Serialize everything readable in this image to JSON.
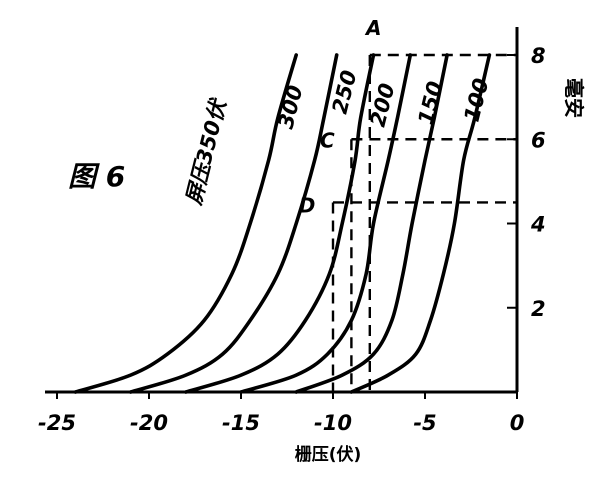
{
  "figure_label": "图 6",
  "chart_data": {
    "type": "line",
    "xlabel": "栅压(伏)",
    "ylabel": "毫安",
    "xlim": [
      -25,
      0
    ],
    "ylim": [
      0,
      8
    ],
    "x_ticks": [
      -25,
      -20,
      -15,
      -10,
      -5,
      0
    ],
    "x_tick_labels": [
      "-25",
      "-20",
      "-15",
      "-10",
      "-5",
      "0"
    ],
    "y_ticks": [
      2,
      4,
      6,
      8
    ],
    "y_tick_labels": [
      "2",
      "4",
      "6",
      "8"
    ],
    "grid": false,
    "series_label_prefix": "屏压",
    "series_label_unit": "伏",
    "series": [
      {
        "name": "350",
        "label": "屏压350伏",
        "x": [
          -24.0,
          -21.0,
          -19.0,
          -17.0,
          -15.5,
          -14.5,
          -13.5,
          -13.0,
          -12.0
        ],
        "y": [
          0,
          0.4,
          0.9,
          1.7,
          2.8,
          4.0,
          5.5,
          6.5,
          8.0
        ]
      },
      {
        "name": "300",
        "label": "300",
        "x": [
          -21.0,
          -18.0,
          -16.0,
          -14.5,
          -13.0,
          -12.0,
          -11.0,
          -10.5,
          -9.8
        ],
        "y": [
          0,
          0.4,
          0.9,
          1.7,
          2.8,
          4.0,
          5.5,
          6.5,
          8.0
        ]
      },
      {
        "name": "250",
        "label": "250",
        "x": [
          -18.0,
          -15.0,
          -13.0,
          -11.5,
          -10.2,
          -9.5,
          -8.8,
          -8.5,
          -7.8
        ],
        "y": [
          0,
          0.4,
          0.9,
          1.7,
          2.8,
          4.0,
          5.5,
          6.5,
          8.0
        ]
      },
      {
        "name": "200",
        "label": "200",
        "x": [
          -15.0,
          -12.0,
          -10.3,
          -9.0,
          -8.2,
          -7.8,
          -7.0,
          -6.5,
          -5.8
        ],
        "y": [
          0,
          0.4,
          0.9,
          1.7,
          2.8,
          4.0,
          5.5,
          6.5,
          8.0
        ]
      },
      {
        "name": "150",
        "label": "150",
        "x": [
          -12.0,
          -9.5,
          -7.8,
          -6.8,
          -6.2,
          -5.7,
          -5.0,
          -4.5,
          -3.8
        ],
        "y": [
          0,
          0.4,
          0.9,
          1.7,
          2.8,
          4.0,
          5.5,
          6.5,
          8.0
        ]
      },
      {
        "name": "100",
        "label": "100",
        "x": [
          -9.0,
          -7.0,
          -5.5,
          -4.7,
          -4.0,
          -3.4,
          -2.9,
          -2.3,
          -1.5
        ],
        "y": [
          0,
          0.4,
          0.9,
          1.7,
          2.8,
          4.0,
          5.5,
          6.5,
          8.0
        ]
      }
    ],
    "annotations": [
      {
        "label": "A",
        "x": -8.0,
        "y": 8.0
      },
      {
        "label": "C",
        "x": -9.0,
        "y": 6.0
      },
      {
        "label": "D",
        "x": -10.0,
        "y": 4.5
      }
    ],
    "dashed_guides": [
      {
        "from": [
          -8.0,
          8.0
        ],
        "to": [
          0,
          8.0
        ]
      },
      {
        "from": [
          -9.0,
          6.0
        ],
        "to": [
          0,
          6.0
        ]
      },
      {
        "from": [
          -10.0,
          4.5
        ],
        "to": [
          0,
          4.5
        ]
      },
      {
        "from": [
          -8.0,
          8.0
        ],
        "to": [
          -8.0,
          0
        ]
      },
      {
        "from": [
          -9.0,
          6.0
        ],
        "to": [
          -9.0,
          0
        ]
      },
      {
        "from": [
          -10.0,
          4.5
        ],
        "to": [
          -10.0,
          0
        ]
      }
    ],
    "line_color": "#000000"
  }
}
